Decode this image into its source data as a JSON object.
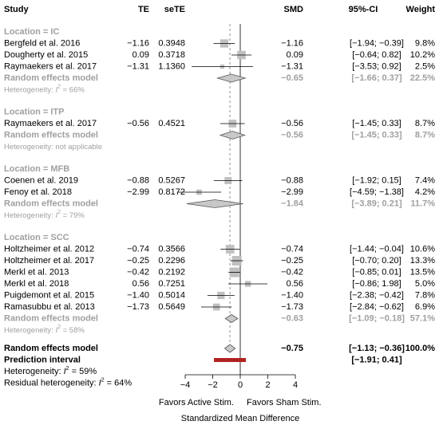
{
  "chart_data": {
    "type": "forest",
    "columns": [
      "Study",
      "TE",
      "seTE",
      "SMD",
      "95%-CI",
      "Weight"
    ],
    "xlim": [
      -5,
      5
    ],
    "xticks": [
      {
        "value": -4,
        "label": "−4"
      },
      {
        "value": -2,
        "label": "−2"
      },
      0,
      2,
      4
    ],
    "x_label": "Standardized Mean Difference",
    "left_label": "Favors Active Stim.",
    "right_label": "Favors Sham Stim.",
    "square_color": "#c0c0c0",
    "diamond_color": "#c8c8c8",
    "prediction_color": "#b22222",
    "groups": [
      {
        "label": "Location = IC",
        "studies": [
          {
            "name": "Bergfeld et al. 2016",
            "te": {
              "value": -1.16,
              "label": "−1.16"
            },
            "se": {
              "value": 0.3948,
              "label": "0.3948"
            },
            "ci": {
              "lower": -1.94,
              "upper": -0.39,
              "label": "[−1.94; −0.39]"
            },
            "weight": {
              "value": 9.8,
              "label": "9.8%"
            }
          },
          {
            "name": "Dougherty et al. 2015",
            "te": {
              "value": 0.09,
              "label": "0.09"
            },
            "se": {
              "value": 0.3718,
              "label": "0.3718"
            },
            "ci": {
              "lower": -0.64,
              "upper": 0.82,
              "label": "[−0.64; 0.82]"
            },
            "weight": {
              "value": 10.2,
              "label": "10.2%"
            }
          },
          {
            "name": "Raymaekers et al. 2017",
            "te": {
              "value": -1.31,
              "label": "−1.31"
            },
            "se": {
              "value": 1.136,
              "label": "1.1360"
            },
            "ci": {
              "lower": -3.53,
              "upper": 0.92,
              "label": "[−3.53; 0.92]"
            },
            "weight": {
              "value": 2.5,
              "label": "2.5%"
            }
          }
        ],
        "summary": {
          "name": "Random effects model",
          "smd": {
            "value": -0.65,
            "label": "−0.65"
          },
          "ci": {
            "lower": -1.66,
            "upper": 0.37,
            "label": "[−1.66; 0.37]"
          },
          "weight": {
            "value": 22.5,
            "label": "22.5%"
          }
        },
        "heterogeneity": [
          {
            "text": "Heterogeneity: "
          },
          {
            "text": "I",
            "style": "italic"
          },
          {
            "text": "2",
            "style": "super"
          },
          {
            "text": " = 66%"
          }
        ]
      },
      {
        "label": "Location = ITP",
        "studies": [
          {
            "name": "Raymaekers et al. 2017",
            "te": {
              "value": -0.56,
              "label": "−0.56"
            },
            "se": {
              "value": 0.4521,
              "label": "0.4521"
            },
            "ci": {
              "lower": -1.45,
              "upper": 0.33,
              "label": "[−1.45; 0.33]"
            },
            "weight": {
              "value": 8.7,
              "label": "8.7%"
            }
          }
        ],
        "summary": {
          "name": "Random effects model",
          "smd": {
            "value": -0.56,
            "label": "−0.56"
          },
          "ci": {
            "lower": -1.45,
            "upper": 0.33,
            "label": "[−1.45; 0.33]"
          },
          "weight": {
            "value": 8.7,
            "label": "8.7%"
          }
        },
        "heterogeneity": [
          {
            "text": "Heterogeneity: not applicable"
          }
        ]
      },
      {
        "label": "Location = MFB",
        "studies": [
          {
            "name": "Coenen et al. 2019",
            "te": {
              "value": -0.88,
              "label": "−0.88"
            },
            "se": {
              "value": 0.5267,
              "label": "0.5267"
            },
            "ci": {
              "lower": -1.92,
              "upper": 0.15,
              "label": "[−1.92; 0.15]"
            },
            "weight": {
              "value": 7.4,
              "label": "7.4%"
            }
          },
          {
            "name": "Fenoy et al. 2018",
            "te": {
              "value": -2.99,
              "label": "−2.99"
            },
            "se": {
              "value": 0.8172,
              "label": "0.8172"
            },
            "ci": {
              "lower": -4.59,
              "upper": -1.38,
              "label": "[−4.59; −1.38]"
            },
            "weight": {
              "value": 4.2,
              "label": "4.2%"
            }
          }
        ],
        "summary": {
          "name": "Random effects model",
          "smd": {
            "value": -1.84,
            "label": "−1.84"
          },
          "ci": {
            "lower": -3.89,
            "upper": 0.21,
            "label": "[−3.89; 0.21]"
          },
          "weight": {
            "value": 11.7,
            "label": "11.7%"
          }
        },
        "heterogeneity": [
          {
            "text": "Heterogeneity: "
          },
          {
            "text": "I",
            "style": "italic"
          },
          {
            "text": "2",
            "style": "super"
          },
          {
            "text": " = 79%"
          }
        ]
      },
      {
        "label": "Location = SCC",
        "studies": [
          {
            "name": "Holtzheimer et al. 2012",
            "te": {
              "value": -0.74,
              "label": "−0.74"
            },
            "se": {
              "value": 0.3566,
              "label": "0.3566"
            },
            "ci": {
              "lower": -1.44,
              "upper": -0.04,
              "label": "[−1.44; −0.04]"
            },
            "weight": {
              "value": 10.6,
              "label": "10.6%"
            }
          },
          {
            "name": "Holtzheimer et al. 2017",
            "te": {
              "value": -0.25,
              "label": "−0.25"
            },
            "se": {
              "value": 0.2296,
              "label": "0.2296"
            },
            "ci": {
              "lower": -0.7,
              "upper": 0.2,
              "label": "[−0.70; 0.20]"
            },
            "weight": {
              "value": 13.3,
              "label": "13.3%"
            }
          },
          {
            "name": "Merkl et al. 2013",
            "te": {
              "value": -0.42,
              "label": "−0.42"
            },
            "se": {
              "value": 0.2192,
              "label": "0.2192"
            },
            "ci": {
              "lower": -0.85,
              "upper": 0.01,
              "label": "[−0.85; 0.01]"
            },
            "weight": {
              "value": 13.5,
              "label": "13.5%"
            }
          },
          {
            "name": "Merkl et al. 2018",
            "te": {
              "value": 0.56,
              "label": "0.56"
            },
            "se": {
              "value": 0.7251,
              "label": "0.7251"
            },
            "ci": {
              "lower": -0.86,
              "upper": 1.98,
              "label": "[−0.86; 1.98]"
            },
            "weight": {
              "value": 5.0,
              "label": "5.0%"
            }
          },
          {
            "name": "Puigdemont et al. 2015",
            "te": {
              "value": -1.4,
              "label": "−1.40"
            },
            "se": {
              "value": 0.5014,
              "label": "0.5014"
            },
            "ci": {
              "lower": -2.38,
              "upper": -0.42,
              "label": "[−2.38; −0.42]"
            },
            "weight": {
              "value": 7.8,
              "label": "7.8%"
            }
          },
          {
            "name": "Ramasubbu et al. 2013",
            "te": {
              "value": -1.73,
              "label": "−1.73"
            },
            "se": {
              "value": 0.5649,
              "label": "0.5649"
            },
            "ci": {
              "lower": -2.84,
              "upper": -0.62,
              "label": "[−2.84; −0.62]"
            },
            "weight": {
              "value": 6.9,
              "label": "6.9%"
            }
          }
        ],
        "summary": {
          "name": "Random effects model",
          "smd": {
            "value": -0.63,
            "label": "−0.63"
          },
          "ci": {
            "lower": -1.09,
            "upper": -0.18,
            "label": "[−1.09; −0.18]"
          },
          "weight": {
            "value": 57.1,
            "label": "57.1%"
          }
        },
        "heterogeneity": [
          {
            "text": "Heterogeneity: "
          },
          {
            "text": "I",
            "style": "italic"
          },
          {
            "text": "2",
            "style": "super"
          },
          {
            "text": " = 58%"
          }
        ]
      }
    ],
    "overall": {
      "name": "Random effects model",
      "smd": {
        "value": -0.75,
        "label": "−0.75"
      },
      "ci": {
        "lower": -1.13,
        "upper": -0.36,
        "label": "[−1.13; −0.36]"
      },
      "weight": {
        "value": 100.0,
        "label": "100.0%"
      }
    },
    "prediction": {
      "name": "Prediction interval",
      "lower": -1.91,
      "upper": 0.41,
      "label": "[−1.91; 0.41]"
    },
    "heterogeneity": [
      {
        "text": "Heterogeneity: "
      },
      {
        "text": "I",
        "style": "italic"
      },
      {
        "text": "2",
        "style": "super"
      },
      {
        "text": " = 59%"
      }
    ],
    "residual_heterogeneity": [
      {
        "text": "Residual heterogeneity: "
      },
      {
        "text": "I",
        "style": "italic"
      },
      {
        "text": "2",
        "style": "super"
      },
      {
        "text": " = 64%"
      }
    ]
  }
}
